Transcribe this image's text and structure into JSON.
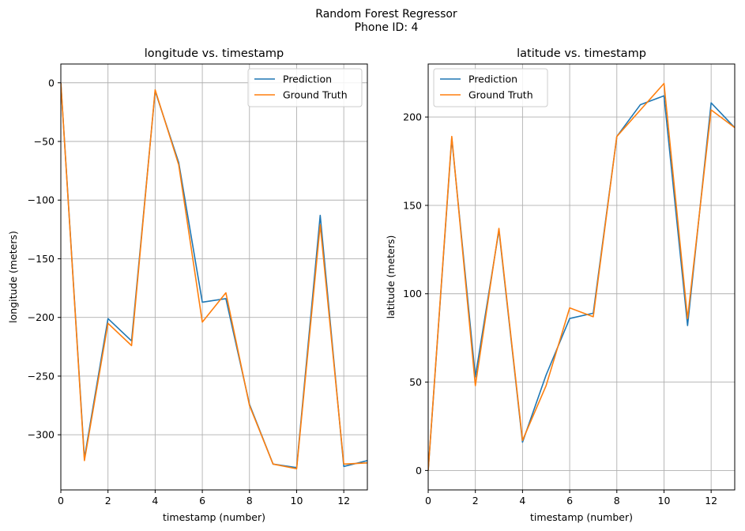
{
  "figure": {
    "suptitle_line1": "Random Forest Regressor",
    "suptitle_line2": "Phone ID: 4"
  },
  "colors": {
    "prediction": "#1f77b4",
    "ground_truth": "#ff7f0e",
    "grid": "#b0b0b0"
  },
  "chart_data": [
    {
      "type": "line",
      "title": "longitude vs. timestamp",
      "xlabel": "timestamp (number)",
      "ylabel": "longitude (meters)",
      "xlim": [
        0,
        13
      ],
      "ylim": [
        -347,
        16
      ],
      "xticks": [
        0,
        2,
        4,
        6,
        8,
        10,
        12
      ],
      "yticks": [
        0,
        -50,
        -100,
        -150,
        -200,
        -250,
        -300
      ],
      "ytick_labels": [
        "0",
        "−50",
        "−100",
        "−150",
        "−200",
        "−250",
        "−300"
      ],
      "grid": true,
      "legend_position": "upper right",
      "x": [
        0,
        1,
        2,
        3,
        4,
        5,
        6,
        7,
        8,
        9,
        10,
        11,
        12,
        13
      ],
      "series": [
        {
          "name": "Prediction",
          "values": [
            0,
            -320,
            -201,
            -220,
            -7,
            -68,
            -187,
            -184,
            -274,
            -325,
            -328,
            -113,
            -327,
            -322
          ]
        },
        {
          "name": "Ground Truth",
          "values": [
            0,
            -322,
            -205,
            -224,
            -6,
            -70,
            -204,
            -179,
            -275,
            -325,
            -329,
            -121,
            -325,
            -324
          ]
        }
      ]
    },
    {
      "type": "line",
      "title": "latitude vs. timestamp",
      "xlabel": "timestamp (number)",
      "ylabel": "latitude (meters)",
      "xlim": [
        0,
        13
      ],
      "ylim": [
        -11,
        230
      ],
      "xticks": [
        0,
        2,
        4,
        6,
        8,
        10,
        12
      ],
      "yticks": [
        0,
        50,
        100,
        150,
        200
      ],
      "ytick_labels": [
        "0",
        "50",
        "100",
        "150",
        "200"
      ],
      "grid": true,
      "legend_position": "upper left",
      "x": [
        0,
        1,
        2,
        3,
        4,
        5,
        6,
        7,
        8,
        9,
        10,
        11,
        12,
        13
      ],
      "series": [
        {
          "name": "Prediction",
          "values": [
            0,
            188,
            53,
            136,
            16,
            54,
            86,
            89,
            189,
            207,
            212,
            82,
            208,
            194
          ]
        },
        {
          "name": "Ground Truth",
          "values": [
            0,
            189,
            48,
            137,
            17,
            48,
            92,
            87,
            189,
            204,
            219,
            86,
            204,
            194
          ]
        }
      ]
    }
  ]
}
